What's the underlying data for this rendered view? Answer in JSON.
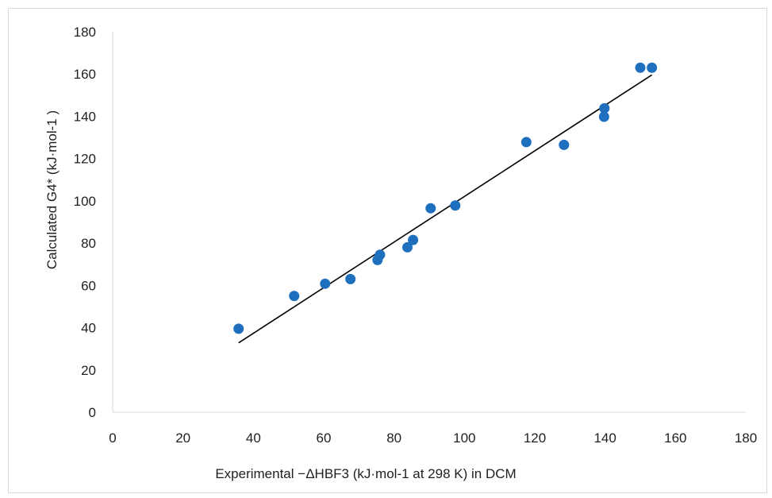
{
  "chart_data": {
    "type": "scatter",
    "title": "",
    "xlabel": "Experimental −ΔHBF3 (kJ·mol-1 at 298 K)  in DCM",
    "ylabel": "Calculated G4* (kJ·mol-1 )",
    "xlim": [
      0,
      180
    ],
    "ylim": [
      0,
      180
    ],
    "x_ticks": [
      0,
      20,
      40,
      60,
      80,
      100,
      120,
      140,
      160,
      180
    ],
    "y_ticks": [
      0,
      20,
      40,
      60,
      80,
      100,
      120,
      140,
      160,
      180
    ],
    "grid": false,
    "legend": "none",
    "series": [
      {
        "color": "#1f6fbf",
        "points": [
          {
            "x": 35.8,
            "y": 39.5
          },
          {
            "x": 51.6,
            "y": 55.0
          },
          {
            "x": 60.4,
            "y": 60.8
          },
          {
            "x": 67.6,
            "y": 63.0
          },
          {
            "x": 75.3,
            "y": 72.0
          },
          {
            "x": 76.0,
            "y": 74.5
          },
          {
            "x": 83.8,
            "y": 78.0
          },
          {
            "x": 85.4,
            "y": 81.5
          },
          {
            "x": 90.4,
            "y": 96.5
          },
          {
            "x": 97.4,
            "y": 97.8
          },
          {
            "x": 117.6,
            "y": 127.8
          },
          {
            "x": 128.3,
            "y": 126.5
          },
          {
            "x": 139.7,
            "y": 139.8
          },
          {
            "x": 139.8,
            "y": 143.8
          },
          {
            "x": 150.0,
            "y": 163.0
          },
          {
            "x": 153.3,
            "y": 163.0
          }
        ]
      }
    ],
    "trendline": {
      "type": "linear",
      "x_range": [
        35.8,
        153.3
      ],
      "y_range": [
        32.8,
        159.6
      ],
      "color": "#000000"
    }
  }
}
